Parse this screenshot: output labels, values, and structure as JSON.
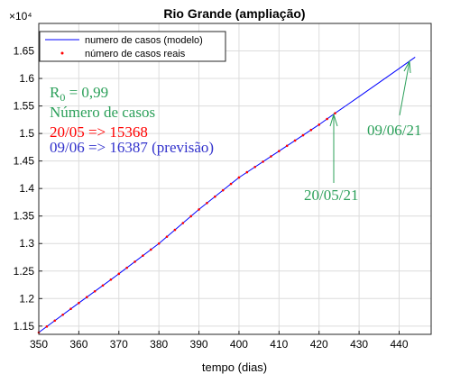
{
  "chart_data": {
    "type": "line",
    "title": "Rio Grande (ampliação)",
    "x_label": "tempo (dias)",
    "y_multiplier": "×10⁴",
    "xlim": [
      350,
      448
    ],
    "xticks": [
      350,
      360,
      370,
      380,
      390,
      400,
      410,
      420,
      430,
      440
    ],
    "ylim": [
      1.135,
      1.7
    ],
    "yticks": [
      1.15,
      1.2,
      1.25,
      1.3,
      1.35,
      1.4,
      1.45,
      1.5,
      1.55,
      1.6,
      1.65
    ],
    "grid": true,
    "legend": "top-left",
    "series": [
      {
        "name": "numero de casos (modelo)",
        "color": "#0000ff",
        "style": "line",
        "x": [
          350,
          360,
          370,
          380,
          390,
          400,
          410,
          420,
          424,
          430,
          440,
          444
        ],
        "values": [
          1.1385,
          1.192,
          1.245,
          1.3,
          1.362,
          1.42,
          1.468,
          1.516,
          1.5368,
          1.567,
          1.618,
          1.6387
        ]
      },
      {
        "name": "número de casos reais",
        "color": "#ff0000",
        "style": "dots",
        "x": [
          350,
          352,
          354,
          356,
          358,
          360,
          362,
          364,
          366,
          368,
          370,
          372,
          374,
          376,
          378,
          380,
          382,
          384,
          386,
          388,
          390,
          392,
          394,
          396,
          398,
          400,
          402,
          404,
          406,
          408,
          410,
          412,
          414,
          416,
          418,
          420,
          422,
          424
        ],
        "values": [
          1.1385,
          1.1492,
          1.1599,
          1.1706,
          1.1813,
          1.192,
          1.2026,
          1.2132,
          1.2238,
          1.2344,
          1.245,
          1.256,
          1.267,
          1.278,
          1.289,
          1.3,
          1.3124,
          1.3248,
          1.3372,
          1.3496,
          1.362,
          1.3736,
          1.3852,
          1.3968,
          1.4084,
          1.42,
          1.4296,
          1.4392,
          1.4488,
          1.4584,
          1.468,
          1.4776,
          1.4872,
          1.4968,
          1.5064,
          1.516,
          1.5264,
          1.5368
        ]
      }
    ],
    "annotations": {
      "r0": {
        "base": "R",
        "sub": "0",
        "rest": " = 0,99",
        "color": "#2ca05a"
      },
      "heading": {
        "text": "Número de casos",
        "color": "#2ca05a"
      },
      "observed": {
        "text": "20/05 => 15368",
        "color": "#ff0000"
      },
      "forecast": {
        "text": "09/06 => 16387 (previsão)",
        "color": "#3333cc"
      },
      "arrow_observed": {
        "text": "20/05/21",
        "color": "#2ca05a"
      },
      "arrow_forecast": {
        "text": "09/06/21",
        "color": "#2ca05a"
      }
    }
  }
}
